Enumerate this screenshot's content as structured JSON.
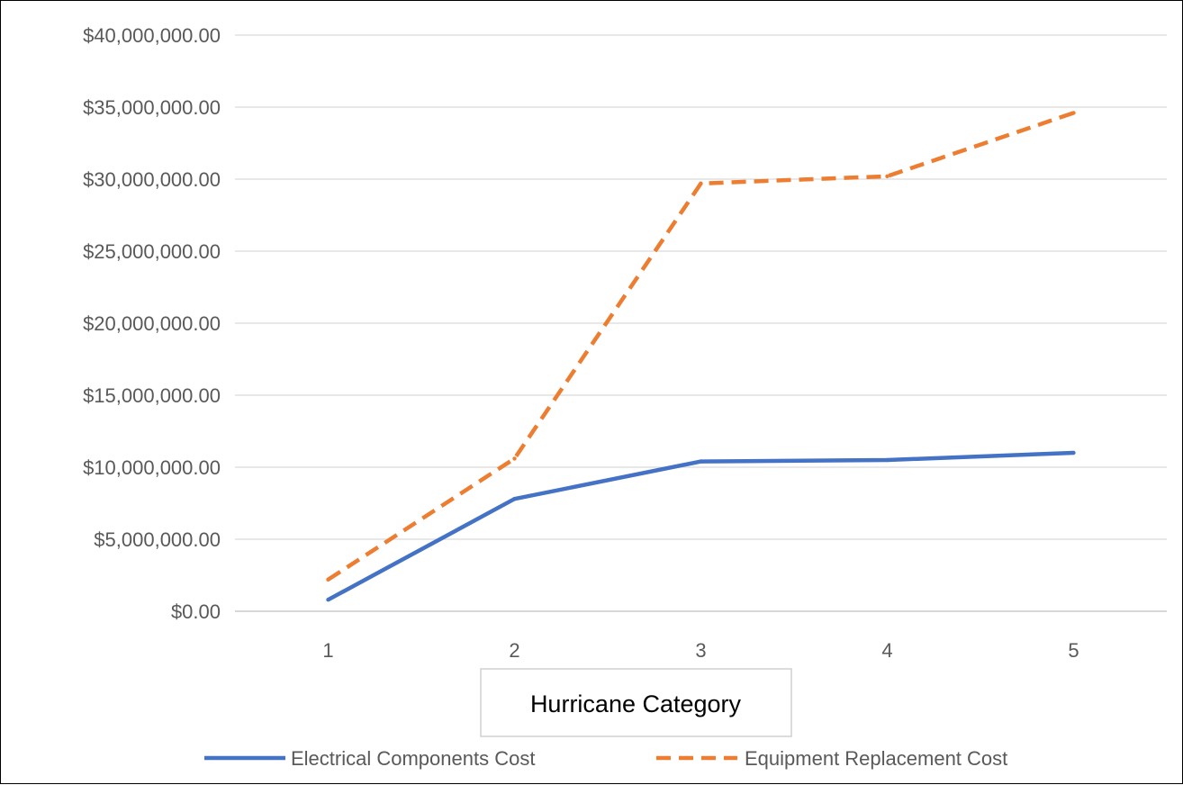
{
  "chart_data": {
    "type": "line",
    "xlabel": "Hurricane Category",
    "categories": [
      "1",
      "2",
      "3",
      "4",
      "5"
    ],
    "y_tick_labels": [
      "$0.00",
      "$5,000,000.00",
      "$10,000,000.00",
      "$15,000,000.00",
      "$20,000,000.00",
      "$25,000,000.00",
      "$30,000,000.00",
      "$35,000,000.00",
      "$40,000,000.00"
    ],
    "ylim": [
      0,
      40000000
    ],
    "y_step": 5000000,
    "grid": true,
    "legend_position": "bottom",
    "series": [
      {
        "name": "Electrical Components Cost",
        "values": [
          800000,
          7800000,
          10400000,
          10500000,
          11000000
        ],
        "color": "#4472C4",
        "style": "solid"
      },
      {
        "name": "Equipment Replacement Cost",
        "values": [
          2200000,
          10600000,
          29700000,
          30200000,
          34600000
        ],
        "color": "#ED7D31",
        "style": "dashed"
      }
    ]
  }
}
